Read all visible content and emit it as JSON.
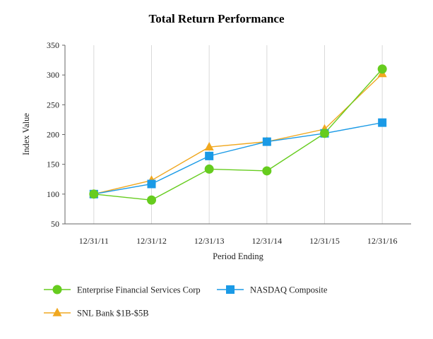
{
  "chart_data": {
    "type": "line",
    "title": "Total Return Performance",
    "xlabel": "Period Ending",
    "ylabel": "Index Value",
    "ylim": [
      50,
      350
    ],
    "yticks": [
      50,
      100,
      150,
      200,
      250,
      300,
      350
    ],
    "grid": "vertical",
    "categories": [
      "12/31/11",
      "12/31/12",
      "12/31/13",
      "12/31/14",
      "12/31/15",
      "12/31/16"
    ],
    "series": [
      {
        "name": "Enterprise Financial Services Corp",
        "values": [
          100,
          90,
          142,
          139,
          202,
          310
        ],
        "color": "#66cc1e",
        "marker": "circle"
      },
      {
        "name": "NASDAQ Composite",
        "values": [
          100,
          117,
          164,
          188,
          202,
          220
        ],
        "color": "#1a9ae6",
        "marker": "square"
      },
      {
        "name": "SNL Bank $1B-$5B",
        "values": [
          100,
          123,
          179,
          188,
          209,
          302
        ],
        "color": "#f0a820",
        "marker": "triangle"
      }
    ]
  }
}
